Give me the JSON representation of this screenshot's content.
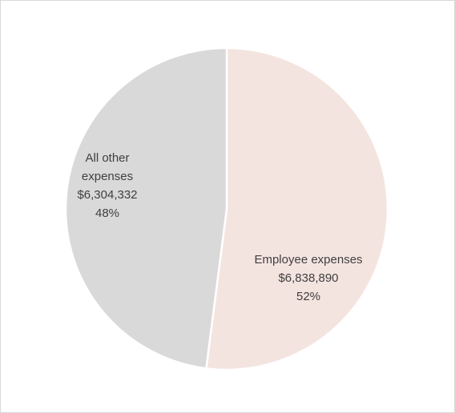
{
  "chart_data": {
    "type": "pie",
    "title": "",
    "slices": [
      {
        "name": "Employee expenses",
        "value": 6838890,
        "value_label": "$6,838,890",
        "percent_label": "52%",
        "color": "#f4e4df"
      },
      {
        "name": "All other expenses",
        "value": 6304332,
        "value_label": "$6,304,332",
        "percent_label": "48%",
        "color": "#d9d9d9",
        "name_lines": [
          "All other",
          "expenses"
        ]
      }
    ],
    "legend": "none",
    "start_angle": "12 o'clock",
    "direction": "clockwise"
  }
}
